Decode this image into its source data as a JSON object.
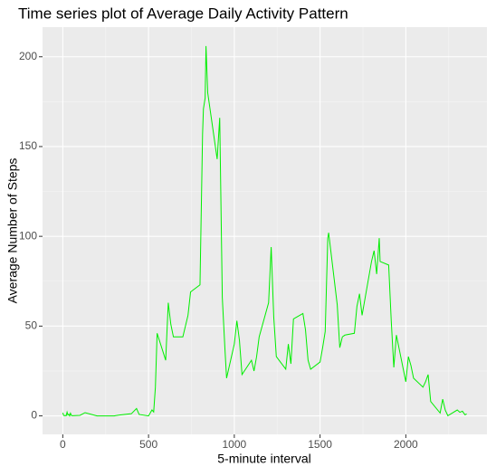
{
  "chart_data": {
    "type": "line",
    "title": "Time series plot of Average Daily Activity Pattern",
    "x_label": "5-minute interval",
    "y_label": "Average Number of Steps",
    "x": [
      0,
      5,
      10,
      15,
      20,
      25,
      30,
      35,
      40,
      45,
      50,
      55,
      100,
      130,
      200,
      230,
      300,
      330,
      400,
      430,
      445,
      500,
      520,
      530,
      540,
      550,
      600,
      615,
      630,
      645,
      700,
      715,
      730,
      745,
      800,
      815,
      820,
      830,
      835,
      845,
      900,
      915,
      930,
      945,
      955,
      1000,
      1015,
      1030,
      1045,
      1100,
      1115,
      1130,
      1145,
      1200,
      1215,
      1230,
      1245,
      1300,
      1315,
      1330,
      1345,
      1400,
      1415,
      1430,
      1445,
      1500,
      1515,
      1530,
      1545,
      1550,
      1600,
      1615,
      1630,
      1645,
      1700,
      1715,
      1730,
      1745,
      1800,
      1815,
      1830,
      1845,
      1850,
      1900,
      1915,
      1930,
      1945,
      2000,
      2015,
      2030,
      2045,
      2100,
      2115,
      2130,
      2145,
      2200,
      2215,
      2230,
      2245,
      2300,
      2315,
      2330,
      2345,
      2355
    ],
    "series": [
      {
        "name": "steps",
        "color": "#00ee00",
        "values": [
          1.7,
          0.3,
          0.1,
          0.2,
          0.1,
          2.1,
          0.5,
          0.9,
          0,
          1.5,
          0.3,
          0.1,
          0.3,
          1.8,
          0,
          0,
          0,
          0.5,
          1.2,
          4.1,
          0.8,
          0,
          3.3,
          2.2,
          16,
          46,
          31,
          63,
          51,
          44,
          44,
          50,
          56,
          69,
          73,
          157,
          171,
          177,
          206,
          180,
          143,
          166,
          66,
          38,
          21,
          40,
          53,
          42,
          23,
          31,
          25,
          33,
          44,
          63,
          94,
          55,
          33,
          26,
          40,
          29,
          54,
          57,
          48,
          31,
          26,
          30,
          38,
          47,
          99,
          102,
          62,
          38,
          44,
          45,
          46,
          61,
          68,
          56,
          86,
          92,
          79,
          99,
          86,
          84,
          53,
          27,
          45,
          19,
          33,
          28,
          21,
          16,
          19,
          23,
          8,
          1.6,
          9.3,
          3.2,
          0.1,
          3.3,
          2,
          2.6,
          0.6,
          1.1
        ]
      }
    ],
    "xlim": [
      -118,
      2473
    ],
    "ylim": [
      -10.3,
      216.5
    ],
    "xticks": [
      0,
      500,
      1000,
      1500,
      2000
    ],
    "yticks": [
      0,
      50,
      100,
      150,
      200
    ],
    "xminor": [
      250,
      750,
      1250,
      1750,
      2250
    ],
    "yminor": [
      25,
      75,
      125,
      175
    ],
    "grid": true
  }
}
